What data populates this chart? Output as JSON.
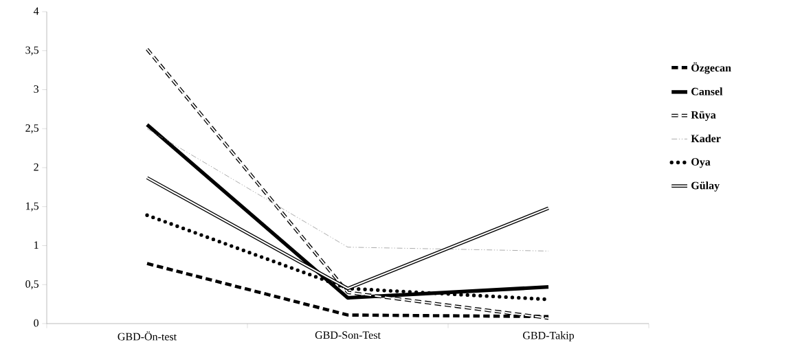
{
  "chart_data": {
    "type": "line",
    "categories": [
      "GBD-Ön-test",
      "GBD-Son-Test",
      "GBD-Takip"
    ],
    "series": [
      {
        "name": "Özgecan",
        "color": "#000000",
        "line_style": "dashed",
        "values": [
          0.77,
          0.11,
          0.09
        ]
      },
      {
        "name": "Cansel",
        "color": "#000000",
        "line_style": "solid",
        "values": [
          2.55,
          0.33,
          0.47
        ]
      },
      {
        "name": "Rüya",
        "color": "#000000",
        "line_style": "dashed",
        "values": [
          3.52,
          0.4,
          0.07
        ]
      },
      {
        "name": "Kader",
        "color": "#808080",
        "line_style": "dashdotted",
        "values": [
          2.5,
          0.98,
          0.93
        ]
      },
      {
        "name": "Oya",
        "color": "#000000",
        "line_style": "dotted",
        "values": [
          1.39,
          0.45,
          0.31
        ]
      },
      {
        "name": "Gülay",
        "color": "#000000",
        "line_style": "solid",
        "values": [
          1.87,
          0.45,
          1.48
        ]
      }
    ],
    "ylim": [
      0,
      4
    ],
    "yticks": [
      0,
      {
        "value": 0.5,
        "label": "0,5"
      },
      1,
      {
        "value": 1.5,
        "label": "1,5"
      },
      2,
      {
        "value": 2.5,
        "label": "2,5"
      },
      3,
      {
        "value": 3.5,
        "label": "3,5"
      },
      4
    ],
    "grid": false,
    "legend": "right",
    "marker": "none"
  }
}
